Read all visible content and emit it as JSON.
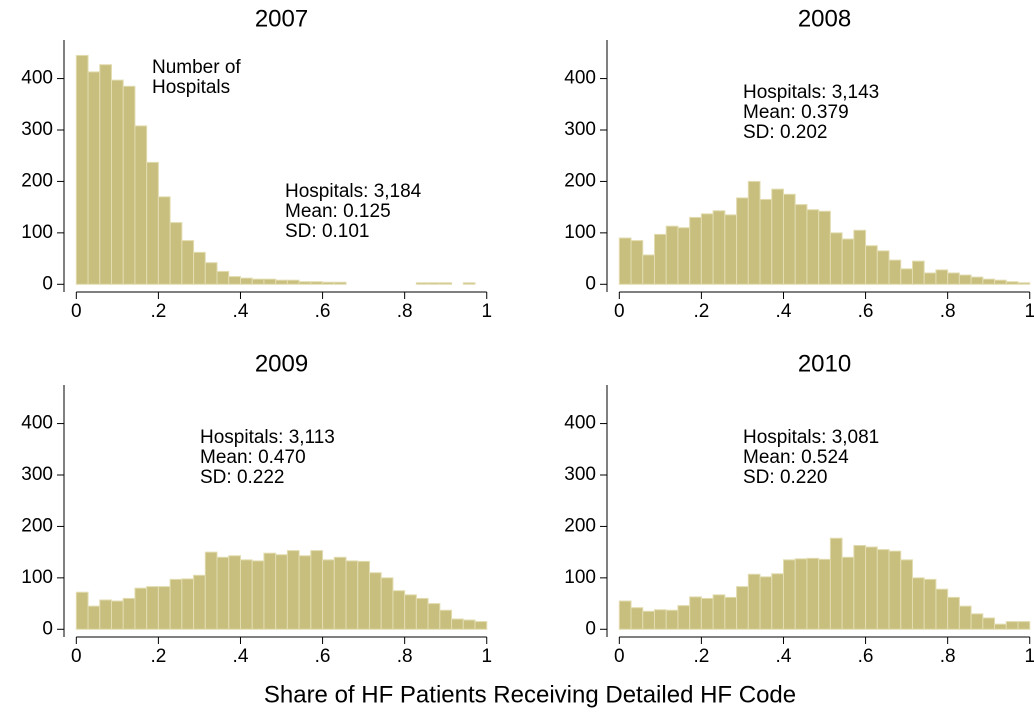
{
  "xlabel": "Share of HF Patients Receiving Detailed HF Code",
  "chart_data": [
    {
      "type": "histogram",
      "title": "2007",
      "color": "#c8bf7f",
      "bins": [
        0,
        0.028571,
        0.057143,
        0.085714,
        0.114286,
        0.142857,
        0.171429,
        0.2,
        0.228571,
        0.257143,
        0.285714,
        0.314286,
        0.342857,
        0.371429,
        0.4,
        0.428571,
        0.457143,
        0.485714,
        0.514286,
        0.542857,
        0.571429,
        0.6,
        0.628571,
        0.657143,
        0.685714,
        0.714286,
        0.742857,
        0.771429,
        0.8,
        0.828571,
        0.857143,
        0.885714,
        0.914286,
        0.942857,
        0.971429,
        1
      ],
      "values": [
        445,
        413,
        427,
        397,
        385,
        308,
        237,
        170,
        120,
        85,
        62,
        42,
        25,
        15,
        12,
        10,
        10,
        8,
        8,
        5,
        5,
        4,
        4,
        0,
        0,
        0,
        0,
        0,
        0,
        3,
        3,
        3,
        0,
        3,
        0
      ],
      "xlim": [
        -0.03,
        1.025
      ],
      "ylim": [
        -15,
        475
      ],
      "xticks": [
        0,
        {
          "value": 0.2,
          "label": ".2"
        },
        {
          "value": 0.4,
          "label": ".4"
        },
        {
          "value": 0.6,
          "label": ".6"
        },
        {
          "value": 0.8,
          "label": ".8"
        },
        1
      ],
      "yticks": [
        0,
        100,
        200,
        300,
        400
      ],
      "note": [
        "Number of",
        "Hospitals"
      ],
      "annotations": [
        "Hospitals: 3,184",
        "Mean: 0.125",
        "SD: 0.101"
      ]
    },
    {
      "type": "histogram",
      "title": "2008",
      "color": "#c8bf7f",
      "bins": [
        0,
        0.028571,
        0.057143,
        0.085714,
        0.114286,
        0.142857,
        0.171429,
        0.2,
        0.228571,
        0.257143,
        0.285714,
        0.314286,
        0.342857,
        0.371429,
        0.4,
        0.428571,
        0.457143,
        0.485714,
        0.514286,
        0.542857,
        0.571429,
        0.6,
        0.628571,
        0.657143,
        0.685714,
        0.714286,
        0.742857,
        0.771429,
        0.8,
        0.828571,
        0.857143,
        0.885714,
        0.914286,
        0.942857,
        0.971429,
        1
      ],
      "values": [
        90,
        85,
        57,
        97,
        113,
        110,
        130,
        137,
        143,
        135,
        168,
        200,
        165,
        185,
        175,
        155,
        145,
        142,
        100,
        88,
        105,
        75,
        65,
        47,
        30,
        45,
        22,
        28,
        22,
        18,
        14,
        10,
        8,
        5,
        3
      ],
      "xlim": [
        -0.03,
        1.025
      ],
      "ylim": [
        -15,
        475
      ],
      "xticks": [
        0,
        {
          "value": 0.2,
          "label": ".2"
        },
        {
          "value": 0.4,
          "label": ".4"
        },
        {
          "value": 0.6,
          "label": ".6"
        },
        {
          "value": 0.8,
          "label": ".8"
        },
        1
      ],
      "yticks": [
        0,
        100,
        200,
        300,
        400
      ],
      "annotations": [
        "Hospitals: 3,143",
        "Mean: 0.379",
        "SD: 0.202"
      ]
    },
    {
      "type": "histogram",
      "title": "2009",
      "color": "#c8bf7f",
      "bins": [
        0,
        0.028571,
        0.057143,
        0.085714,
        0.114286,
        0.142857,
        0.171429,
        0.2,
        0.228571,
        0.257143,
        0.285714,
        0.314286,
        0.342857,
        0.371429,
        0.4,
        0.428571,
        0.457143,
        0.485714,
        0.514286,
        0.542857,
        0.571429,
        0.6,
        0.628571,
        0.657143,
        0.685714,
        0.714286,
        0.742857,
        0.771429,
        0.8,
        0.828571,
        0.857143,
        0.885714,
        0.914286,
        0.942857,
        0.971429,
        1
      ],
      "values": [
        72,
        45,
        57,
        55,
        60,
        80,
        83,
        83,
        97,
        98,
        105,
        150,
        140,
        143,
        135,
        133,
        148,
        145,
        153,
        143,
        153,
        135,
        140,
        133,
        132,
        110,
        100,
        75,
        67,
        60,
        50,
        37,
        20,
        18,
        15
      ],
      "xlim": [
        -0.03,
        1.025
      ],
      "ylim": [
        -15,
        475
      ],
      "xticks": [
        0,
        {
          "value": 0.2,
          "label": ".2"
        },
        {
          "value": 0.4,
          "label": ".4"
        },
        {
          "value": 0.6,
          "label": ".6"
        },
        {
          "value": 0.8,
          "label": ".8"
        },
        1
      ],
      "yticks": [
        0,
        100,
        200,
        300,
        400
      ],
      "annotations": [
        "Hospitals: 3,113",
        "Mean: 0.470",
        "SD: 0.222"
      ]
    },
    {
      "type": "histogram",
      "title": "2010",
      "color": "#c8bf7f",
      "bins": [
        0,
        0.028571,
        0.057143,
        0.085714,
        0.114286,
        0.142857,
        0.171429,
        0.2,
        0.228571,
        0.257143,
        0.285714,
        0.314286,
        0.342857,
        0.371429,
        0.4,
        0.428571,
        0.457143,
        0.485714,
        0.514286,
        0.542857,
        0.571429,
        0.6,
        0.628571,
        0.657143,
        0.685714,
        0.714286,
        0.742857,
        0.771429,
        0.8,
        0.828571,
        0.857143,
        0.885714,
        0.914286,
        0.942857,
        0.971429,
        1
      ],
      "values": [
        55,
        42,
        35,
        38,
        37,
        46,
        63,
        60,
        67,
        62,
        83,
        107,
        102,
        108,
        135,
        137,
        138,
        136,
        177,
        140,
        163,
        160,
        155,
        152,
        135,
        100,
        97,
        78,
        62,
        45,
        30,
        22,
        10,
        15,
        15
      ],
      "xlim": [
        -0.03,
        1.025
      ],
      "ylim": [
        -15,
        475
      ],
      "xticks": [
        0,
        {
          "value": 0.2,
          "label": ".2"
        },
        {
          "value": 0.4,
          "label": ".4"
        },
        {
          "value": 0.6,
          "label": ".6"
        },
        {
          "value": 0.8,
          "label": ".8"
        },
        1
      ],
      "yticks": [
        0,
        100,
        200,
        300,
        400
      ],
      "annotations": [
        "Hospitals: 3,081",
        "Mean: 0.524",
        "SD: 0.220"
      ]
    }
  ]
}
